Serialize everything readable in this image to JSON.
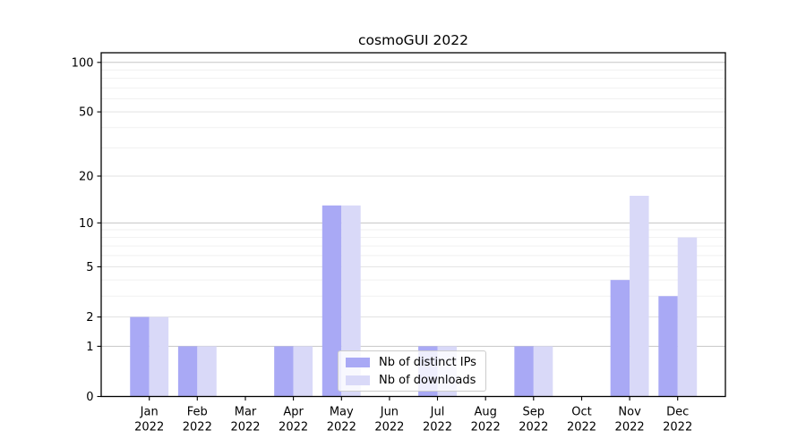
{
  "chart_data": {
    "type": "bar",
    "title": "cosmoGUI 2022",
    "categories": [
      "Jan 2022",
      "Feb 2022",
      "Mar 2022",
      "Apr 2022",
      "May 2022",
      "Jun 2022",
      "Jul 2022",
      "Aug 2022",
      "Sep 2022",
      "Oct 2022",
      "Nov 2022",
      "Dec 2022"
    ],
    "series": [
      {
        "name": "Nb of distinct IPs",
        "color": "#a9a9f5",
        "values": [
          2,
          1,
          0,
          1,
          13,
          0,
          1,
          0,
          1,
          0,
          4,
          3
        ]
      },
      {
        "name": "Nb of downloads",
        "color": "#d9d9f8",
        "values": [
          2,
          1,
          0,
          1,
          13,
          0,
          1,
          0,
          1,
          0,
          15,
          8
        ]
      }
    ],
    "xlabel": "",
    "ylabel": "",
    "yscale": "symlog (pixel position proportional to ln(1+v))",
    "ylim": [
      0,
      115
    ],
    "y_ticks": [
      0,
      1,
      2,
      5,
      10,
      20,
      50,
      100
    ],
    "y_minor_gridlines": [
      3,
      4,
      6,
      7,
      8,
      9,
      30,
      40,
      60,
      70,
      80,
      90
    ],
    "grid": true,
    "legend_position": "inside lower-center, overlapping Jul/Aug bars",
    "colors": {
      "grid_major": "#c6c6c6",
      "grid_mid": "#e2e2e2",
      "grid_minor": "#f1f1f1",
      "spine": "#000000",
      "text": "#000000"
    }
  }
}
